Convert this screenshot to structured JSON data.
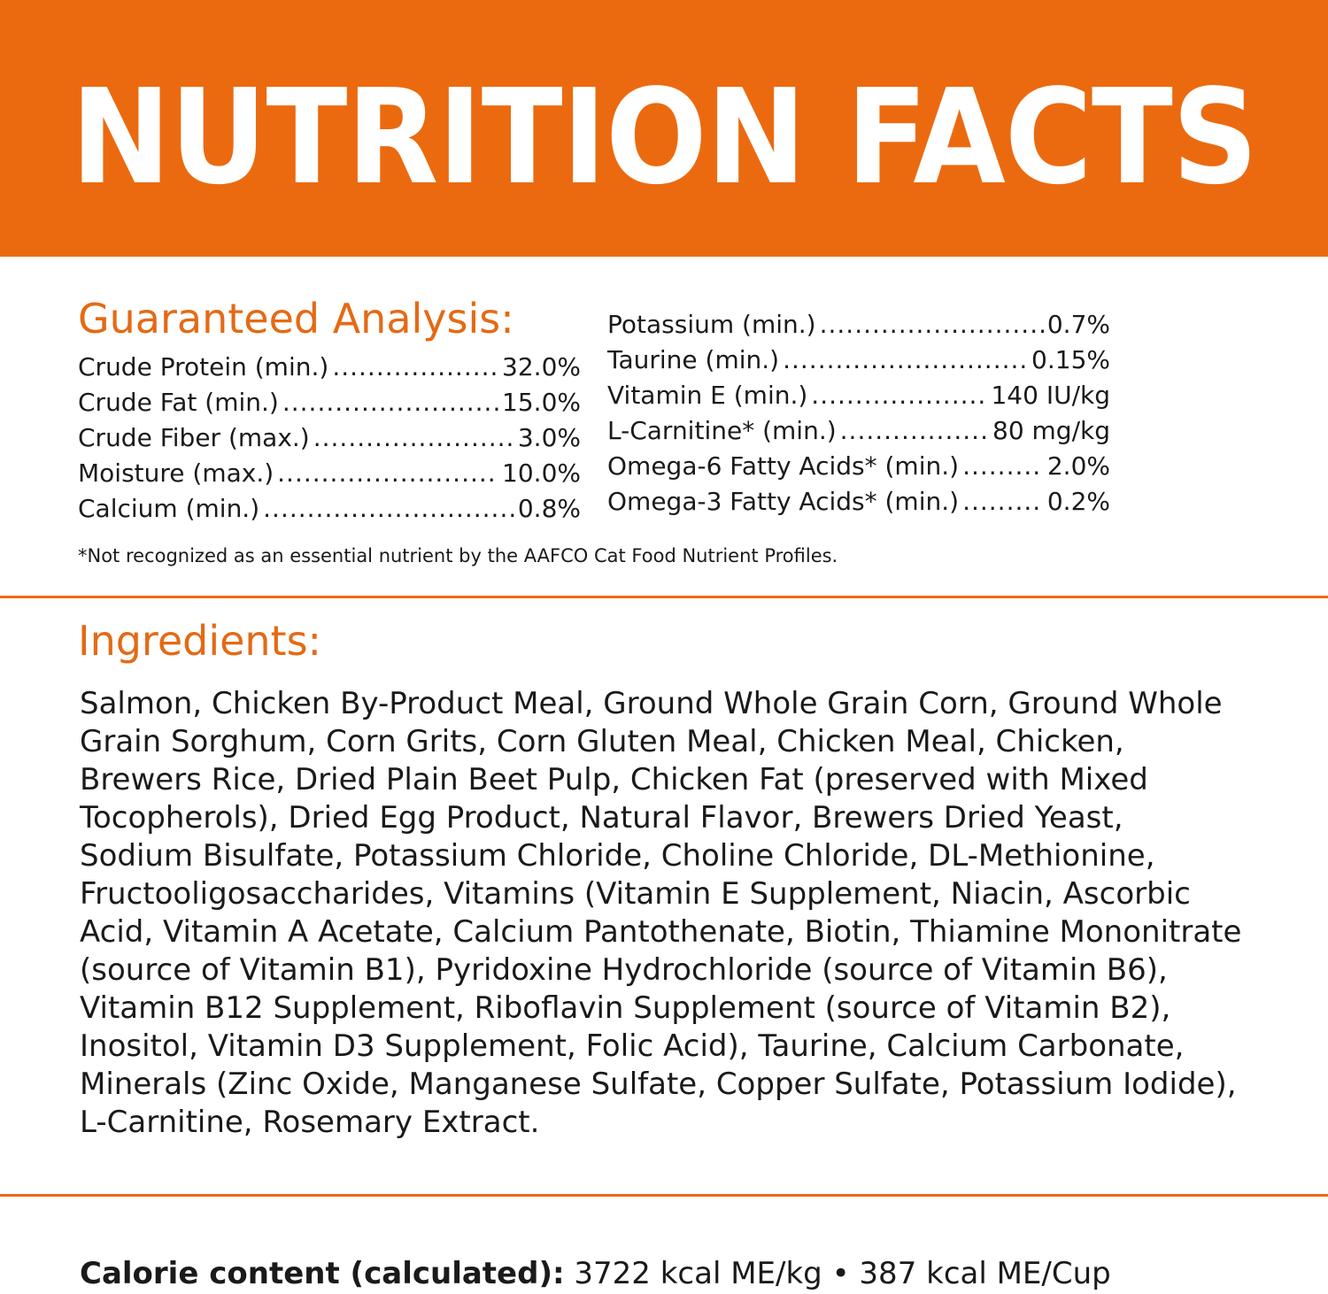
{
  "banner": {
    "title": "NUTRITION FACTS"
  },
  "guaranteed_analysis": {
    "heading": "Guaranteed Analysis:",
    "left": [
      {
        "label": "Crude Protein (min.)",
        "value": "32.0%"
      },
      {
        "label": "Crude Fat (min.)",
        "value": "15.0%"
      },
      {
        "label": "Crude Fiber (max.)",
        "value": "3.0%"
      },
      {
        "label": "Moisture (max.)",
        "value": "10.0%"
      },
      {
        "label": "Calcium (min.)",
        "value": "0.8%"
      }
    ],
    "right": [
      {
        "label": "Potassium (min.)",
        "value": "0.7%"
      },
      {
        "label": "Taurine (min.)",
        "value": "0.15%"
      },
      {
        "label": "Vitamin E (min.)",
        "value": "140 IU/kg"
      },
      {
        "label": "L-Carnitine* (min.)",
        "value": "80 mg/kg"
      },
      {
        "label": "Omega-6 Fatty Acids* (min.)",
        "value": "2.0%"
      },
      {
        "label": "Omega-3 Fatty Acids* (min.)",
        "value": "0.2%"
      }
    ],
    "footnote": "*Not recognized as an essential nutrient by the AAFCO Cat Food Nutrient Profiles."
  },
  "ingredients": {
    "heading": "Ingredients:",
    "lines": [
      "Salmon, Chicken By-Product Meal, Ground Whole Grain Corn, Ground Whole",
      "Grain Sorghum, Corn Grits, Corn Gluten Meal, Chicken Meal, Chicken,",
      "Brewers Rice, Dried Plain Beet Pulp, Chicken Fat (preserved with Mixed",
      "Tocopherols), Dried Egg Product, Natural Flavor, Brewers Dried Yeast,",
      "Sodium Bisulfate, Potassium Chloride, Choline Chloride, DL-Methionine,",
      "Fructooligosaccharides, Vitamins (Vitamin E Supplement, Niacin, Ascorbic",
      "Acid, Vitamin A Acetate, Calcium Pantothenate, Biotin, Thiamine Mononitrate",
      "(source of Vitamin B1), Pyridoxine Hydrochloride (source of Vitamin B6),",
      "Vitamin B12 Supplement, Riboflavin Supplement (source of Vitamin B2),",
      "Inositol, Vitamin D3 Supplement, Folic Acid), Taurine, Calcium Carbonate,",
      "Minerals (Zinc Oxide, Manganese Sulfate, Copper Sulfate, Potassium Iodide),",
      "L-Carnitine, Rosemary Extract."
    ]
  },
  "calorie": {
    "label": "Calorie content (calculated):",
    "value": "3722 kcal ME/kg • 387 kcal ME/Cup"
  },
  "colors": {
    "accent": "#ec6a0f",
    "heading": "#e46a15",
    "text": "#1a1a1a"
  }
}
